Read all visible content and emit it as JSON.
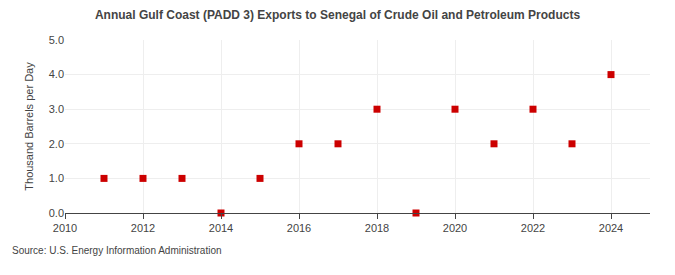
{
  "chart_data": {
    "type": "scatter",
    "title": "Annual Gulf Coast (PADD 3) Exports to Senegal of Crude Oil and Petroleum Products",
    "ylabel": "Thousand Barrels per Day",
    "source": "Source: U.S. Energy Information Administration",
    "x": [
      2011,
      2012,
      2013,
      2014,
      2015,
      2016,
      2017,
      2018,
      2019,
      2020,
      2021,
      2022,
      2023,
      2024
    ],
    "values": [
      1.0,
      1.0,
      1.0,
      0.0,
      1.0,
      2.0,
      2.0,
      3.0,
      0.0,
      3.0,
      2.0,
      3.0,
      2.0,
      4.0
    ],
    "color": "#cc0000",
    "marker": "square",
    "xlim": [
      2010,
      2025
    ],
    "xticks": [
      2010,
      2012,
      2014,
      2016,
      2018,
      2020,
      2022,
      2024
    ],
    "ylim": [
      0.0,
      5.0
    ],
    "yticks": [
      {
        "value": 0.0,
        "label": "0.0"
      },
      {
        "value": 1.0,
        "label": "1.0"
      },
      {
        "value": 2.0,
        "label": "2.0"
      },
      {
        "value": 3.0,
        "label": "3.0"
      },
      {
        "value": 4.0,
        "label": "4.0"
      },
      {
        "value": 5.0,
        "label": "5.0"
      }
    ],
    "grid": true
  }
}
